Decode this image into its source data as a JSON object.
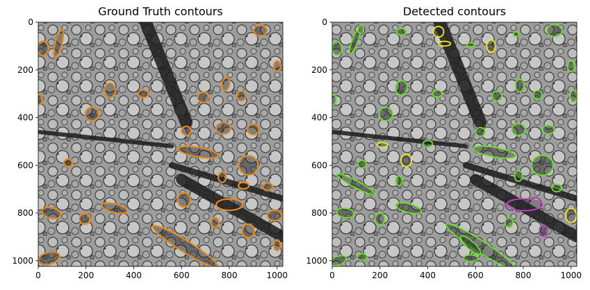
{
  "chart_data": [
    {
      "type": "image",
      "title": "Ground Truth contours",
      "xticks": [
        0,
        200,
        400,
        600,
        800,
        1000
      ],
      "yticks": [
        0,
        200,
        400,
        600,
        800,
        1000
      ],
      "xlim": [
        0,
        1024
      ],
      "ylim": [
        1024,
        0
      ],
      "contour_colors": {
        "ground_truth": "#e8891c"
      },
      "contours": [
        {
          "x": 20,
          "y": 110,
          "rx": 22,
          "ry": 30,
          "rot": 0
        },
        {
          "x": 85,
          "y": 90,
          "rx": 14,
          "ry": 60,
          "rot": 15
        },
        {
          "x": 930,
          "y": 35,
          "rx": 28,
          "ry": 22,
          "rot": 0
        },
        {
          "x": 1000,
          "y": 185,
          "rx": 14,
          "ry": 22,
          "rot": 0
        },
        {
          "x": 5,
          "y": 325,
          "rx": 12,
          "ry": 20,
          "rot": 0
        },
        {
          "x": 300,
          "y": 285,
          "rx": 22,
          "ry": 30,
          "rot": 0
        },
        {
          "x": 440,
          "y": 300,
          "rx": 22,
          "ry": 16,
          "rot": 0
        },
        {
          "x": 690,
          "y": 315,
          "rx": 22,
          "ry": 22,
          "rot": 0
        },
        {
          "x": 785,
          "y": 260,
          "rx": 16,
          "ry": 28,
          "rot": 10
        },
        {
          "x": 850,
          "y": 310,
          "rx": 18,
          "ry": 20,
          "rot": 0
        },
        {
          "x": 225,
          "y": 385,
          "rx": 28,
          "ry": 28,
          "rot": 0
        },
        {
          "x": 620,
          "y": 455,
          "rx": 20,
          "ry": 18,
          "rot": 0
        },
        {
          "x": 775,
          "y": 445,
          "rx": 30,
          "ry": 24,
          "rot": 0
        },
        {
          "x": 900,
          "y": 450,
          "rx": 24,
          "ry": 22,
          "rot": 0
        },
        {
          "x": 670,
          "y": 545,
          "rx": 85,
          "ry": 20,
          "rot": 10
        },
        {
          "x": 125,
          "y": 590,
          "rx": 18,
          "ry": 16,
          "rot": 0
        },
        {
          "x": 880,
          "y": 600,
          "rx": 40,
          "ry": 40,
          "rot": 0
        },
        {
          "x": 770,
          "y": 650,
          "rx": 16,
          "ry": 22,
          "rot": 0
        },
        {
          "x": 860,
          "y": 685,
          "rx": 22,
          "ry": 14,
          "rot": 0
        },
        {
          "x": 960,
          "y": 690,
          "rx": 20,
          "ry": 16,
          "rot": 0
        },
        {
          "x": 610,
          "y": 745,
          "rx": 26,
          "ry": 30,
          "rot": 0
        },
        {
          "x": 800,
          "y": 765,
          "rx": 55,
          "ry": 24,
          "rot": 0
        },
        {
          "x": 320,
          "y": 780,
          "rx": 55,
          "ry": 18,
          "rot": 15
        },
        {
          "x": 55,
          "y": 800,
          "rx": 40,
          "ry": 22,
          "rot": 15
        },
        {
          "x": 195,
          "y": 825,
          "rx": 22,
          "ry": 22,
          "rot": 0
        },
        {
          "x": 990,
          "y": 810,
          "rx": 30,
          "ry": 22,
          "rot": 0
        },
        {
          "x": 740,
          "y": 840,
          "rx": 16,
          "ry": 20,
          "rot": 0
        },
        {
          "x": 880,
          "y": 875,
          "rx": 25,
          "ry": 28,
          "rot": 0
        },
        {
          "x": 1000,
          "y": 935,
          "rx": 14,
          "ry": 22,
          "rot": 0
        },
        {
          "x": 615,
          "y": 940,
          "rx": 160,
          "ry": 24,
          "rot": 32
        },
        {
          "x": 45,
          "y": 990,
          "rx": 45,
          "ry": 25,
          "rot": -15
        }
      ]
    },
    {
      "type": "image",
      "title": "Detected contours",
      "xticks": [
        0,
        200,
        400,
        600,
        800,
        1000
      ],
      "yticks": [
        0,
        200,
        400,
        600,
        800,
        1000
      ],
      "xlim": [
        0,
        1024
      ],
      "ylim": [
        1024,
        0
      ],
      "contour_colors": {
        "green": "#65e81c",
        "yellow": "#f2f21c",
        "magenta": "#d63bd6"
      },
      "contours": [
        {
          "x": 20,
          "y": 110,
          "rx": 20,
          "ry": 28,
          "rot": 0,
          "c": "green"
        },
        {
          "x": 95,
          "y": 80,
          "rx": 12,
          "ry": 55,
          "rot": 20,
          "c": "green"
        },
        {
          "x": 120,
          "y": 30,
          "rx": 12,
          "ry": 18,
          "rot": 0,
          "c": "green"
        },
        {
          "x": 290,
          "y": 40,
          "rx": 20,
          "ry": 14,
          "rot": 0,
          "c": "green"
        },
        {
          "x": 445,
          "y": 40,
          "rx": 22,
          "ry": 22,
          "rot": 0,
          "c": "yellow"
        },
        {
          "x": 470,
          "y": 90,
          "rx": 25,
          "ry": 10,
          "rot": 0,
          "c": "yellow"
        },
        {
          "x": 580,
          "y": 95,
          "rx": 16,
          "ry": 8,
          "rot": 0,
          "c": "green"
        },
        {
          "x": 665,
          "y": 100,
          "rx": 18,
          "ry": 26,
          "rot": 0,
          "c": "yellow"
        },
        {
          "x": 770,
          "y": 50,
          "rx": 12,
          "ry": 10,
          "rot": 0,
          "c": "green"
        },
        {
          "x": 930,
          "y": 35,
          "rx": 32,
          "ry": 25,
          "rot": 0,
          "c": "green"
        },
        {
          "x": 1000,
          "y": 185,
          "rx": 14,
          "ry": 22,
          "rot": 0,
          "c": "green"
        },
        {
          "x": 5,
          "y": 325,
          "rx": 12,
          "ry": 20,
          "rot": 0,
          "c": "green"
        },
        {
          "x": 290,
          "y": 275,
          "rx": 24,
          "ry": 30,
          "rot": 10,
          "c": "green"
        },
        {
          "x": 440,
          "y": 300,
          "rx": 20,
          "ry": 14,
          "rot": 0,
          "c": "green"
        },
        {
          "x": 690,
          "y": 310,
          "rx": 20,
          "ry": 20,
          "rot": 0,
          "c": "green"
        },
        {
          "x": 785,
          "y": 265,
          "rx": 18,
          "ry": 26,
          "rot": 0,
          "c": "green"
        },
        {
          "x": 860,
          "y": 305,
          "rx": 18,
          "ry": 18,
          "rot": 0,
          "c": "green"
        },
        {
          "x": 1010,
          "y": 310,
          "rx": 14,
          "ry": 24,
          "rot": 0,
          "c": "green"
        },
        {
          "x": 225,
          "y": 385,
          "rx": 28,
          "ry": 28,
          "rot": 0,
          "c": "green"
        },
        {
          "x": 620,
          "y": 460,
          "rx": 20,
          "ry": 18,
          "rot": 0,
          "c": "green"
        },
        {
          "x": 780,
          "y": 450,
          "rx": 28,
          "ry": 24,
          "rot": 0,
          "c": "green"
        },
        {
          "x": 905,
          "y": 450,
          "rx": 24,
          "ry": 18,
          "rot": 0,
          "c": "green"
        },
        {
          "x": 400,
          "y": 510,
          "rx": 20,
          "ry": 14,
          "rot": 0,
          "c": "green"
        },
        {
          "x": 210,
          "y": 515,
          "rx": 22,
          "ry": 10,
          "rot": 0,
          "c": "yellow"
        },
        {
          "x": 680,
          "y": 545,
          "rx": 90,
          "ry": 20,
          "rot": 10,
          "c": "green"
        },
        {
          "x": 310,
          "y": 580,
          "rx": 22,
          "ry": 26,
          "rot": 0,
          "c": "yellow"
        },
        {
          "x": 125,
          "y": 595,
          "rx": 18,
          "ry": 16,
          "rot": 0,
          "c": "green"
        },
        {
          "x": 880,
          "y": 600,
          "rx": 45,
          "ry": 42,
          "rot": 0,
          "c": "green"
        },
        {
          "x": 780,
          "y": 645,
          "rx": 16,
          "ry": 22,
          "rot": 0,
          "c": "green"
        },
        {
          "x": 280,
          "y": 665,
          "rx": 14,
          "ry": 20,
          "rot": 0,
          "c": "green"
        },
        {
          "x": 100,
          "y": 680,
          "rx": 90,
          "ry": 14,
          "rot": 28,
          "c": "green"
        },
        {
          "x": 940,
          "y": 695,
          "rx": 20,
          "ry": 16,
          "rot": 0,
          "c": "green"
        },
        {
          "x": 805,
          "y": 765,
          "rx": 75,
          "ry": 25,
          "rot": 0,
          "c": "magenta"
        },
        {
          "x": 1000,
          "y": 810,
          "rx": 22,
          "ry": 30,
          "rot": 0,
          "c": "yellow"
        },
        {
          "x": 320,
          "y": 780,
          "rx": 55,
          "ry": 18,
          "rot": 15,
          "c": "green"
        },
        {
          "x": 55,
          "y": 800,
          "rx": 36,
          "ry": 20,
          "rot": 10,
          "c": "green"
        },
        {
          "x": 200,
          "y": 825,
          "rx": 20,
          "ry": 24,
          "rot": 0,
          "c": "green"
        },
        {
          "x": 740,
          "y": 840,
          "rx": 16,
          "ry": 20,
          "rot": 0,
          "c": "green"
        },
        {
          "x": 885,
          "y": 875,
          "rx": 18,
          "ry": 24,
          "rot": 0,
          "c": "magenta"
        },
        {
          "x": 620,
          "y": 940,
          "rx": 170,
          "ry": 24,
          "rot": 33,
          "c": "green"
        },
        {
          "x": 580,
          "y": 935,
          "rx": 55,
          "ry": 16,
          "rot": 42,
          "c": "green"
        },
        {
          "x": 25,
          "y": 1000,
          "rx": 35,
          "ry": 18,
          "rot": -20,
          "c": "green"
        },
        {
          "x": 125,
          "y": 985,
          "rx": 20,
          "ry": 14,
          "rot": 0,
          "c": "green"
        },
        {
          "x": 580,
          "y": 990,
          "rx": 30,
          "ry": 14,
          "rot": 0,
          "c": "green"
        }
      ]
    }
  ]
}
